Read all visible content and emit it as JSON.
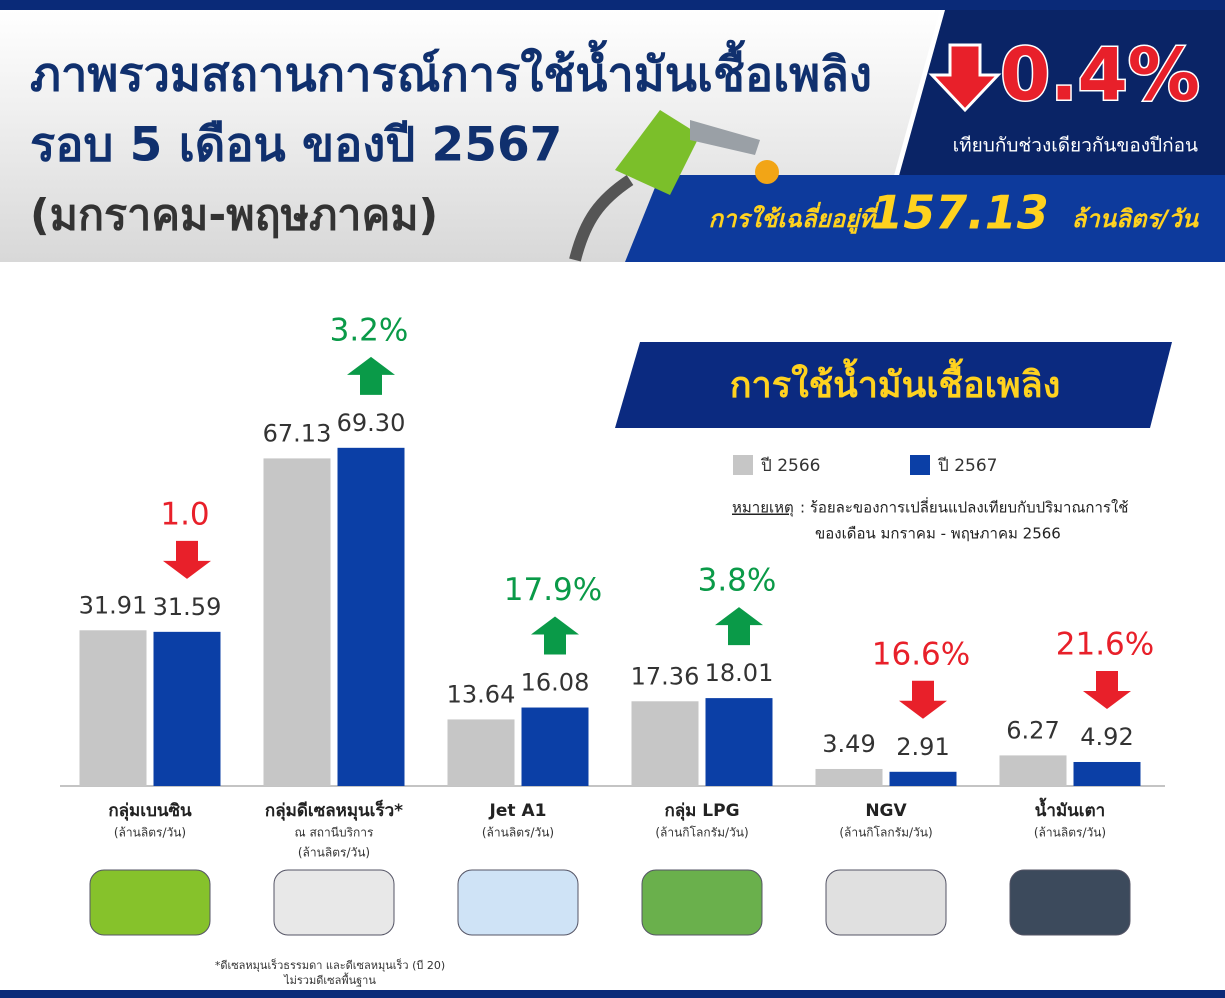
{
  "header": {
    "title_lines": [
      "ภาพรวมสถานการณ์การใช้น้ำมันเชื้อเพลิง",
      "รอบ 5 เดือน ของปี 2567",
      "(มกราคม-พฤษภาคม)"
    ],
    "overall_change": {
      "value": 0.4,
      "label": "0.4%",
      "direction": "down"
    },
    "comparison_note": "เทียบกับช่วงเดียวกันของปีก่อน",
    "average_prefix": "การใช้เฉลี่ยอยู่ที่",
    "average_value": 157.13,
    "average_unit": "ล้านลิตร/วัน"
  },
  "chart_data": {
    "type": "bar",
    "title": "การใช้น้ำมันเชื้อเพลิง",
    "categories": [
      "กลุ่มเบนซิน",
      "กลุ่มดีเซลหมุนเร็ว*",
      "Jet A1",
      "กลุ่ม LPG",
      "NGV",
      "น้ำมันเตา"
    ],
    "category_sublabels": [
      [
        "(ล้านลิตร/วัน)"
      ],
      [
        "ณ สถานีบริการ",
        "(ล้านลิตร/วัน)"
      ],
      [
        "(ล้านลิตร/วัน)"
      ],
      [
        "(ล้านกิโลกรัม/วัน)"
      ],
      [
        "(ล้านกิโลกรัม/วัน)"
      ],
      [
        "(ล้านลิตร/วัน)"
      ]
    ],
    "series": [
      {
        "name": "ปี 2566",
        "color": "#c6c6c6",
        "values": [
          31.91,
          67.13,
          13.64,
          17.36,
          3.49,
          6.27
        ]
      },
      {
        "name": "ปี 2567",
        "color": "#0b3fa6",
        "values": [
          31.59,
          69.3,
          16.08,
          18.01,
          2.91,
          4.92
        ],
        "value_labels": [
          "31.59",
          "69.30",
          "16.08",
          "18.01",
          "2.91",
          "4.92"
        ]
      }
    ],
    "changes": {
      "values": [
        1.0,
        3.2,
        17.9,
        3.8,
        16.6,
        21.6
      ],
      "value_labels": [
        "1.0",
        "3.2%",
        "17.9%",
        "3.8%",
        "16.6%",
        "21.6%"
      ],
      "directions": [
        "down",
        "up",
        "up",
        "up",
        "down",
        "down"
      ]
    },
    "ylim": [
      0,
      70
    ],
    "note_label": "หมายเหตุ",
    "note_lines": [
      ": ร้อยละของการเปลี่ยนแปลงเทียบกับปริมาณการใช้",
      "ของเดือน มกราคม - พฤษภาคม 2566"
    ],
    "footnote_lines": [
      "*ดีเซลหมุนเร็วธรรมดา และดีเซลหมุนเร็ว (บี 20)",
      "ไม่รวมดีเซลพื้นฐาน"
    ]
  }
}
